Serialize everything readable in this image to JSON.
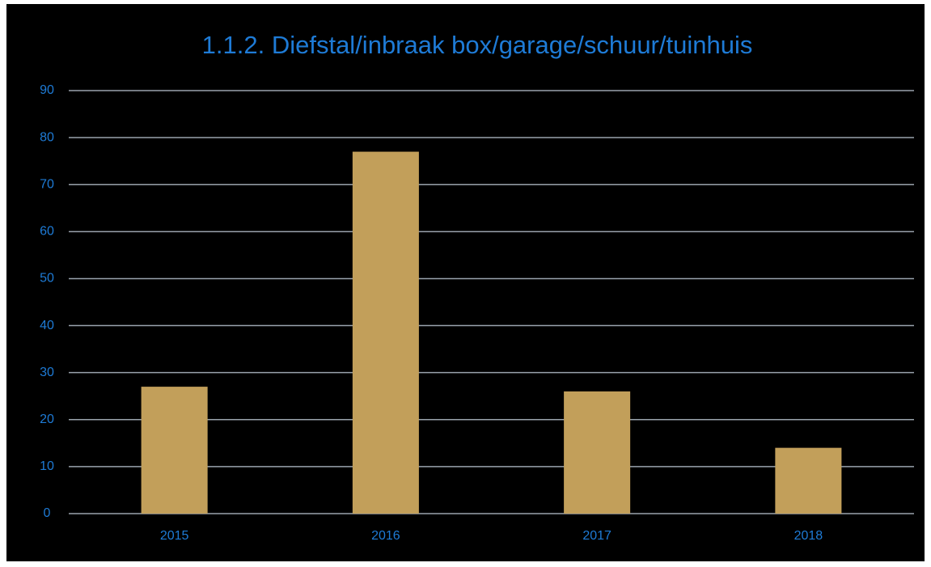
{
  "chart_data": {
    "type": "bar",
    "title": "1.1.2. Diefstal/inbraak box/garage/schuur/tuinhuis",
    "categories": [
      "2015",
      "2016",
      "2017",
      "2018"
    ],
    "values": [
      27,
      77,
      26,
      14
    ],
    "color": "#c29f5a",
    "ylim": [
      0,
      90
    ],
    "yticks": [
      0,
      10,
      20,
      30,
      40,
      50,
      60,
      70,
      80,
      90
    ],
    "grid": true
  }
}
